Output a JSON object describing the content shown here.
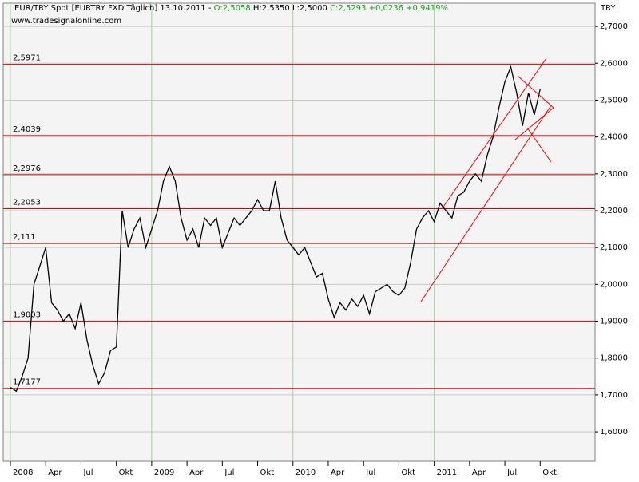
{
  "chart_data": {
    "type": "line",
    "title_parts": [
      {
        "text": "EUR/TRY Spot [EURTRY FXD  Täglich] 13.10.2011 - ",
        "color": "#000000"
      },
      {
        "text": "O:2,5058",
        "color": "#1a9c1a"
      },
      {
        "text": " H:2,5350 L:2,5000 ",
        "color": "#000000"
      },
      {
        "text": "C:2,5293 +0,0236 +0,9419%",
        "color": "#1a9c1a"
      }
    ],
    "subtitle": "www.tradesignalonline.com",
    "y_axis_label": "TRY",
    "categories": [
      "2008",
      null,
      null,
      null,
      null,
      null,
      "Apr",
      null,
      null,
      null,
      null,
      null,
      "Jul",
      null,
      null,
      null,
      null,
      null,
      "Okt",
      null,
      null,
      null,
      null,
      null,
      "2009",
      null,
      null,
      null,
      null,
      null,
      "Apr",
      null,
      null,
      null,
      null,
      null,
      "Jul",
      null,
      null,
      null,
      null,
      null,
      "Okt",
      null,
      null,
      null,
      null,
      null,
      "2010",
      null,
      null,
      null,
      null,
      null,
      "Apr",
      null,
      null,
      null,
      null,
      null,
      "Jul",
      null,
      null,
      null,
      null,
      null,
      "Okt",
      null,
      null,
      null,
      null,
      null,
      "2011",
      null,
      null,
      null,
      null,
      null,
      "Apr",
      null,
      null,
      null,
      null,
      null,
      "Jul",
      null,
      null,
      null,
      null,
      null,
      "Okt"
    ],
    "values": [
      1.72,
      1.71,
      1.75,
      1.8,
      2.0,
      2.05,
      2.1,
      1.95,
      1.93,
      1.9,
      1.92,
      1.88,
      1.95,
      1.85,
      1.78,
      1.73,
      1.76,
      1.82,
      1.83,
      2.2,
      2.1,
      2.15,
      2.18,
      2.1,
      2.15,
      2.2,
      2.28,
      2.32,
      2.28,
      2.18,
      2.12,
      2.15,
      2.1,
      2.18,
      2.16,
      2.18,
      2.1,
      2.14,
      2.18,
      2.16,
      2.18,
      2.2,
      2.23,
      2.2,
      2.2,
      2.28,
      2.18,
      2.12,
      2.1,
      2.08,
      2.1,
      2.06,
      2.02,
      2.03,
      1.96,
      1.91,
      1.95,
      1.93,
      1.96,
      1.94,
      1.97,
      1.92,
      1.98,
      1.99,
      2.0,
      1.98,
      1.97,
      1.99,
      2.06,
      2.15,
      2.18,
      2.2,
      2.17,
      2.22,
      2.2,
      2.18,
      2.24,
      2.25,
      2.28,
      2.3,
      2.28,
      2.35,
      2.4,
      2.48,
      2.55,
      2.59,
      2.52,
      2.43,
      2.52,
      2.46,
      2.53
    ],
    "color": "#000000",
    "ylim": [
      1.52,
      2.763
    ],
    "yticks": [
      {
        "value": 1.6,
        "label": "1,6000"
      },
      {
        "value": 1.7,
        "label": "1,7000"
      },
      {
        "value": 1.8,
        "label": "1,8000"
      },
      {
        "value": 1.9,
        "label": "1,9000"
      },
      {
        "value": 2.0,
        "label": "2,0000"
      },
      {
        "value": 2.1,
        "label": "2,1000"
      },
      {
        "value": 2.2,
        "label": "2,2000"
      },
      {
        "value": 2.3,
        "label": "2,3000"
      },
      {
        "value": 2.4,
        "label": "2,4000"
      },
      {
        "value": 2.5,
        "label": "2,5000"
      },
      {
        "value": 2.6,
        "label": "2,6000"
      },
      {
        "value": 2.7,
        "label": "2,7000"
      }
    ],
    "levels": [
      {
        "value": 2.5971,
        "label": "2,5971"
      },
      {
        "value": 2.4039,
        "label": "2,4039"
      },
      {
        "value": 2.2976,
        "label": "2,2976"
      },
      {
        "value": 2.2053,
        "label": "2,2053"
      },
      {
        "value": 2.111,
        "label": "2,111"
      },
      {
        "value": 1.9003,
        "label": "1,9003"
      },
      {
        "value": 1.7177,
        "label": "1,7177"
      }
    ],
    "level_color": "#dd0000",
    "grid": true
  }
}
